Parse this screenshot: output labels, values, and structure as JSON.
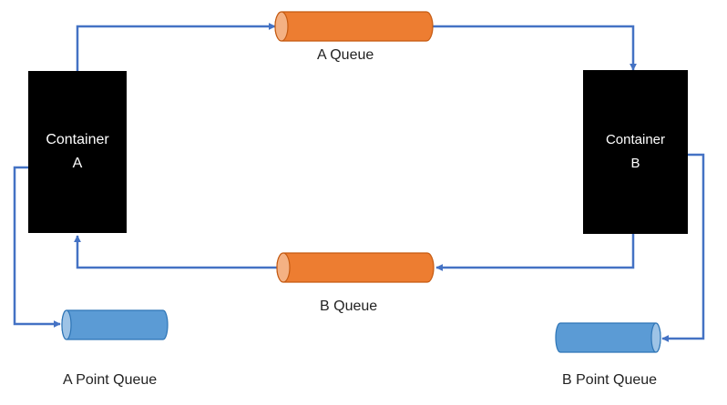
{
  "containers": {
    "a": {
      "line1": "Container",
      "line2": "A"
    },
    "b": {
      "line1": "Container",
      "line2": "B"
    }
  },
  "queues": {
    "a_queue": {
      "label": "A Queue"
    },
    "b_queue": {
      "label": "B Queue"
    },
    "a_point_queue": {
      "label": "A Point Queue"
    },
    "b_point_queue": {
      "label": "B Point Queue"
    }
  },
  "colors": {
    "container_fill": "#000000",
    "queue_orange": "#ED7D31",
    "queue_orange_edge": "#C55A11",
    "queue_blue": "#5B9BD5",
    "queue_blue_edge": "#2E75B6",
    "connector": "#4472C4"
  }
}
